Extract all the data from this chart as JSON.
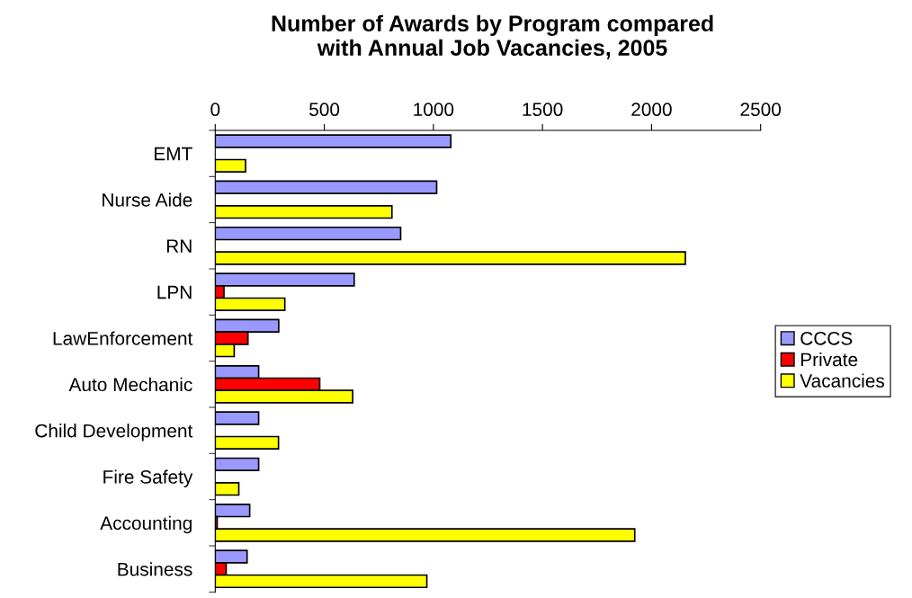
{
  "chart_data": {
    "type": "bar",
    "orientation": "horizontal",
    "title": "Number of Awards by Program compared\nwith Annual Job Vacancies, 2005",
    "categories": [
      "EMT",
      "Nurse Aide",
      "RN",
      "LPN",
      "LawEnforcement",
      "Auto Mechanic",
      "Child Development",
      "Fire Safety",
      "Accounting",
      "Business"
    ],
    "series": [
      {
        "name": "CCCS",
        "color": "#9999ff",
        "values": [
          1080,
          1015,
          850,
          637,
          291,
          199,
          199,
          199,
          158,
          146
        ]
      },
      {
        "name": "Private",
        "color": "#ff0000",
        "values": [
          null,
          null,
          null,
          40,
          150,
          479,
          null,
          null,
          9,
          50
        ]
      },
      {
        "name": "Vacancies",
        "color": "#ffff00",
        "values": [
          139,
          810,
          2155,
          319,
          87,
          630,
          290,
          108,
          1923,
          970
        ]
      }
    ],
    "xlim": [
      0,
      2500
    ],
    "xticks": [
      0,
      500,
      1000,
      1500,
      2000,
      2500
    ],
    "grid": false,
    "legend": "right"
  }
}
